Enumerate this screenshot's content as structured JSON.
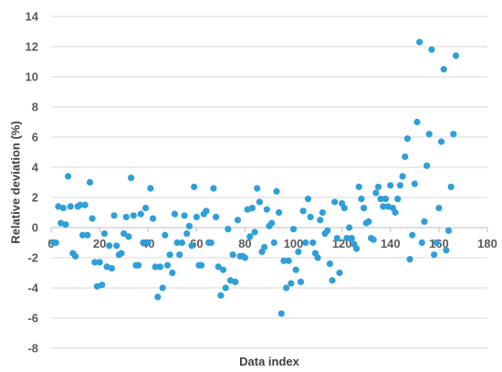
{
  "chart_data": {
    "type": "scatter",
    "title": "",
    "xlabel": "Data index",
    "ylabel": "Relative deviation (%)",
    "xlim": [
      0,
      180
    ],
    "ylim": [
      -8,
      14
    ],
    "xticks": [
      0,
      20,
      40,
      60,
      80,
      100,
      120,
      140,
      160,
      180
    ],
    "yticks": [
      -8,
      -6,
      -4,
      -2,
      0,
      2,
      4,
      6,
      8,
      10,
      12,
      14
    ],
    "grid": "horizontal",
    "legend": "none",
    "marker_color": "#2E9FD9",
    "points": [
      [
        1,
        -1.0
      ],
      [
        2,
        -1.0
      ],
      [
        3,
        1.4
      ],
      [
        4,
        0.3
      ],
      [
        5,
        1.3
      ],
      [
        6,
        0.2
      ],
      [
        7,
        3.4
      ],
      [
        8,
        1.4
      ],
      [
        9,
        -1.7
      ],
      [
        10,
        -1.9
      ],
      [
        11,
        1.4
      ],
      [
        12,
        1.5
      ],
      [
        13,
        -0.5
      ],
      [
        14,
        1.5
      ],
      [
        15,
        -0.5
      ],
      [
        16,
        3.0
      ],
      [
        17,
        0.6
      ],
      [
        18,
        -2.3
      ],
      [
        19,
        -3.9
      ],
      [
        20,
        -2.3
      ],
      [
        21,
        -3.8
      ],
      [
        22,
        -0.4
      ],
      [
        23,
        -2.6
      ],
      [
        24,
        -1.2
      ],
      [
        25,
        -2.7
      ],
      [
        26,
        0.8
      ],
      [
        27,
        -1.2
      ],
      [
        28,
        -1.8
      ],
      [
        29,
        -1.7
      ],
      [
        30,
        -0.4
      ],
      [
        31,
        0.7
      ],
      [
        32,
        -0.6
      ],
      [
        33,
        3.3
      ],
      [
        34,
        0.8
      ],
      [
        35,
        -2.5
      ],
      [
        36,
        -2.5
      ],
      [
        37,
        0.9
      ],
      [
        38,
        -1.0
      ],
      [
        39,
        1.3
      ],
      [
        40,
        -1.0
      ],
      [
        41,
        2.6
      ],
      [
        42,
        0.6
      ],
      [
        43,
        -2.6
      ],
      [
        44,
        -4.6
      ],
      [
        45,
        -2.6
      ],
      [
        46,
        -4.0
      ],
      [
        47,
        -0.5
      ],
      [
        48,
        -2.5
      ],
      [
        49,
        -1.8
      ],
      [
        50,
        -3.0
      ],
      [
        51,
        0.9
      ],
      [
        52,
        -1.0
      ],
      [
        53,
        -1.8
      ],
      [
        54,
        -1.0
      ],
      [
        55,
        0.8
      ],
      [
        56,
        -0.4
      ],
      [
        57,
        0.1
      ],
      [
        58,
        -1.2
      ],
      [
        59,
        2.7
      ],
      [
        60,
        0.7
      ],
      [
        61,
        -2.5
      ],
      [
        62,
        -2.5
      ],
      [
        63,
        0.9
      ],
      [
        64,
        1.1
      ],
      [
        65,
        -1.0
      ],
      [
        66,
        -1.0
      ],
      [
        67,
        2.6
      ],
      [
        68,
        0.7
      ],
      [
        69,
        -2.6
      ],
      [
        70,
        -4.5
      ],
      [
        71,
        -2.8
      ],
      [
        72,
        -4.0
      ],
      [
        73,
        -0.1
      ],
      [
        74,
        -3.5
      ],
      [
        75,
        -1.8
      ],
      [
        76,
        -3.6
      ],
      [
        77,
        0.5
      ],
      [
        78,
        -1.9
      ],
      [
        79,
        -1.9
      ],
      [
        80,
        -2.0
      ],
      [
        81,
        1.2
      ],
      [
        82,
        -0.6
      ],
      [
        83,
        1.3
      ],
      [
        84,
        -0.3
      ],
      [
        85,
        2.6
      ],
      [
        86,
        1.7
      ],
      [
        87,
        -1.6
      ],
      [
        88,
        -1.3
      ],
      [
        89,
        1.2
      ],
      [
        90,
        0.1
      ],
      [
        91,
        0.3
      ],
      [
        92,
        -1.0
      ],
      [
        93,
        2.4
      ],
      [
        94,
        1.0
      ],
      [
        95,
        -5.7
      ],
      [
        96,
        -2.2
      ],
      [
        97,
        -4.0
      ],
      [
        98,
        -2.2
      ],
      [
        99,
        -3.7
      ],
      [
        100,
        -0.1
      ],
      [
        101,
        -2.8
      ],
      [
        102,
        -1.6
      ],
      [
        103,
        -3.6
      ],
      [
        104,
        1.1
      ],
      [
        105,
        -1.0
      ],
      [
        106,
        1.9
      ],
      [
        107,
        0.7
      ],
      [
        108,
        -1.0
      ],
      [
        109,
        -1.7
      ],
      [
        110,
        -2.0
      ],
      [
        111,
        0.5
      ],
      [
        112,
        1.0
      ],
      [
        113,
        -0.4
      ],
      [
        114,
        -0.2
      ],
      [
        115,
        -2.4
      ],
      [
        116,
        -3.5
      ],
      [
        117,
        1.7
      ],
      [
        118,
        -0.7
      ],
      [
        119,
        -3.0
      ],
      [
        120,
        1.6
      ],
      [
        121,
        1.3
      ],
      [
        122,
        -0.7
      ],
      [
        123,
        0.0
      ],
      [
        124,
        -0.7
      ],
      [
        125,
        -1.1
      ],
      [
        126,
        -1.4
      ],
      [
        127,
        2.7
      ],
      [
        128,
        1.9
      ],
      [
        129,
        1.3
      ],
      [
        130,
        0.3
      ],
      [
        131,
        0.4
      ],
      [
        132,
        -0.7
      ],
      [
        133,
        -0.8
      ],
      [
        134,
        2.3
      ],
      [
        135,
        2.7
      ],
      [
        136,
        1.9
      ],
      [
        137,
        1.4
      ],
      [
        138,
        1.9
      ],
      [
        139,
        1.4
      ],
      [
        140,
        2.8
      ],
      [
        141,
        1.3
      ],
      [
        142,
        1.0
      ],
      [
        143,
        1.9
      ],
      [
        144,
        2.8
      ],
      [
        145,
        3.4
      ],
      [
        146,
        4.7
      ],
      [
        147,
        5.9
      ],
      [
        148,
        -2.1
      ],
      [
        149,
        -0.5
      ],
      [
        150,
        2.9
      ],
      [
        151,
        7.0
      ],
      [
        152,
        12.3
      ],
      [
        153,
        -1.0
      ],
      [
        154,
        0.4
      ],
      [
        155,
        4.1
      ],
      [
        156,
        6.2
      ],
      [
        157,
        11.8
      ],
      [
        158,
        -1.8
      ],
      [
        159,
        -1.0
      ],
      [
        160,
        1.3
      ],
      [
        161,
        5.7
      ],
      [
        162,
        10.5
      ],
      [
        163,
        -1.5
      ],
      [
        164,
        -0.2
      ],
      [
        165,
        2.7
      ],
      [
        166,
        6.2
      ],
      [
        167,
        11.4
      ]
    ]
  }
}
